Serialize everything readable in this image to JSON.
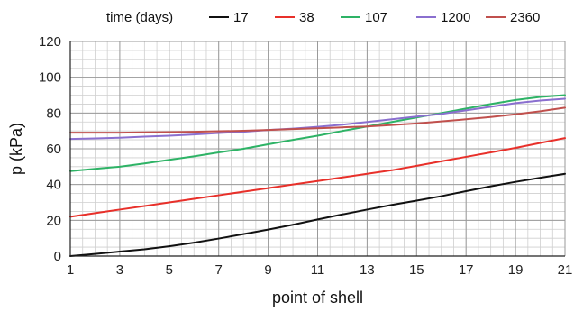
{
  "chart_data": {
    "type": "line",
    "xlabel": "point of shell",
    "ylabel": "p  (kPa)",
    "xlim": [
      1,
      21
    ],
    "ylim": [
      0,
      120
    ],
    "x_ticks": [
      1,
      3,
      5,
      7,
      9,
      11,
      13,
      15,
      17,
      19,
      21
    ],
    "y_ticks": [
      0,
      20,
      40,
      60,
      80,
      100,
      120
    ],
    "grid": true,
    "legend_title": "time (days)",
    "legend_position": "top",
    "series": [
      {
        "name": "17",
        "color": "#111111",
        "x": [
          1,
          2,
          3,
          4,
          5,
          6,
          7,
          8,
          9,
          10,
          11,
          12,
          13,
          14,
          15,
          16,
          17,
          18,
          19,
          20,
          21
        ],
        "y": [
          0,
          1.2,
          2.5,
          3.8,
          5.5,
          7.5,
          9.8,
          12.3,
          14.8,
          17.5,
          20.5,
          23.3,
          26,
          28.6,
          31,
          33.5,
          36.3,
          39,
          41.5,
          43.8,
          46
        ]
      },
      {
        "name": "38",
        "color": "#e8302a",
        "x": [
          1,
          2,
          3,
          4,
          5,
          6,
          7,
          8,
          9,
          10,
          11,
          12,
          13,
          14,
          15,
          16,
          17,
          18,
          19,
          20,
          21
        ],
        "y": [
          22,
          24,
          26,
          28,
          30,
          32,
          34,
          36,
          38,
          40,
          42,
          44,
          46,
          48,
          50.5,
          53,
          55.5,
          58,
          60.5,
          63.3,
          66
        ]
      },
      {
        "name": "107",
        "color": "#2eb366",
        "x": [
          1,
          2,
          3,
          4,
          5,
          6,
          7,
          8,
          9,
          10,
          11,
          12,
          13,
          14,
          15,
          16,
          17,
          18,
          19,
          20,
          21
        ],
        "y": [
          47.5,
          48.8,
          50,
          51.8,
          53.8,
          55.8,
          58,
          60,
          62.5,
          65,
          67.3,
          70,
          72.5,
          75,
          77.5,
          80,
          82.5,
          85,
          87.3,
          89,
          90
        ]
      },
      {
        "name": "1200",
        "color": "#8a6fcf",
        "x": [
          1,
          2,
          3,
          4,
          5,
          6,
          7,
          8,
          9,
          10,
          11,
          12,
          13,
          14,
          15,
          16,
          17,
          18,
          19,
          20,
          21
        ],
        "y": [
          65.5,
          65.8,
          66.2,
          66.8,
          67.3,
          68,
          68.8,
          69.5,
          70.5,
          71.3,
          72.3,
          73.5,
          75,
          76.5,
          78,
          79.5,
          81.5,
          83.5,
          85.5,
          87,
          88
        ]
      },
      {
        "name": "2360",
        "color": "#c0504d",
        "x": [
          1,
          2,
          3,
          4,
          5,
          6,
          7,
          8,
          9,
          10,
          11,
          12,
          13,
          14,
          15,
          16,
          17,
          18,
          19,
          20,
          21
        ],
        "y": [
          69,
          69,
          69,
          69.2,
          69.3,
          69.5,
          69.8,
          70.1,
          70.5,
          71,
          71.5,
          72,
          72.5,
          73.3,
          74.2,
          75.3,
          76.5,
          77.8,
          79.3,
          81,
          83
        ]
      }
    ]
  }
}
